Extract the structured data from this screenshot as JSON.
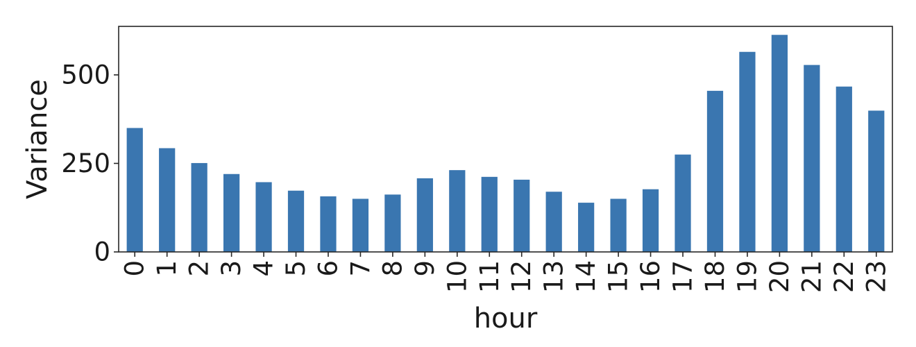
{
  "chart_data": {
    "type": "bar",
    "title": "",
    "xlabel": "hour",
    "ylabel": "Variance",
    "categories": [
      "0",
      "1",
      "2",
      "3",
      "4",
      "5",
      "6",
      "7",
      "8",
      "9",
      "10",
      "11",
      "12",
      "13",
      "14",
      "15",
      "16",
      "17",
      "18",
      "19",
      "20",
      "21",
      "22",
      "23"
    ],
    "values": [
      350,
      293,
      251,
      220,
      197,
      173,
      157,
      150,
      162,
      208,
      231,
      212,
      204,
      170,
      139,
      150,
      177,
      275,
      455,
      565,
      613,
      528,
      467,
      399
    ],
    "ylim": [
      0,
      637
    ],
    "yticks": [
      0,
      250,
      500
    ],
    "bar_color": "#3a76b0",
    "grid": false,
    "legend": "none"
  }
}
